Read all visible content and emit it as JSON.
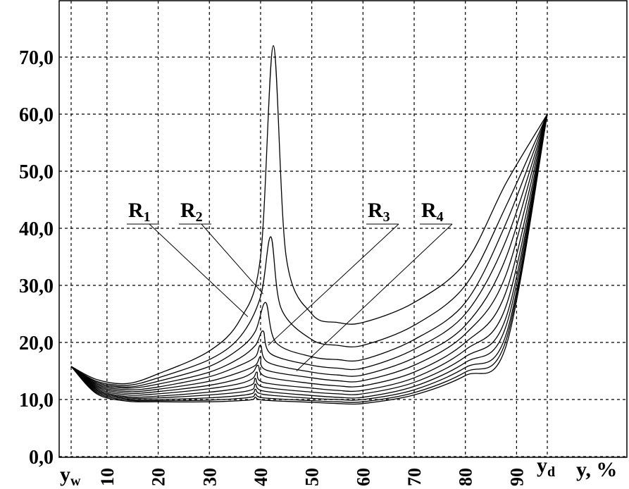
{
  "chart_data": {
    "type": "line",
    "title": "",
    "xlabel": "y, %",
    "ylabel": "",
    "x_min_label": "y",
    "x_min_sub": "w",
    "x_max_label": "y",
    "x_max_sub": "d",
    "xlim": [
      3,
      97
    ],
    "ylim": [
      0,
      75
    ],
    "x_ticks": [
      10,
      20,
      30,
      40,
      50,
      60,
      70,
      80,
      90
    ],
    "x_tick_labels": [
      "10",
      "20",
      "30",
      "40",
      "50",
      "60",
      "70",
      "80",
      "90"
    ],
    "y_ticks": [
      0,
      10,
      20,
      30,
      40,
      50,
      60,
      70
    ],
    "y_tick_labels": [
      "0,0",
      "10,0",
      "20,0",
      "30,0",
      "40,0",
      "50,0",
      "60,0",
      "70,0"
    ],
    "grid": true,
    "curve_labels": [
      {
        "text": "R",
        "sub": "1",
        "points_to": [
          37.5,
          24.5
        ]
      },
      {
        "text": "R",
        "sub": "2",
        "points_to": [
          40.5,
          28.5
        ]
      },
      {
        "text": "R",
        "sub": "3",
        "points_to": [
          41.5,
          19.5
        ]
      },
      {
        "text": "R",
        "sub": "4",
        "points_to": [
          47,
          15
        ]
      }
    ],
    "series": [
      {
        "values": [
          [
            3,
            15.8
          ],
          [
            8,
            13.5
          ],
          [
            14,
            12.8
          ],
          [
            20,
            14.5
          ],
          [
            30,
            18.5
          ],
          [
            36,
            24
          ],
          [
            40,
            35
          ],
          [
            42.5,
            72
          ],
          [
            45,
            35
          ],
          [
            50,
            25
          ],
          [
            55,
            23.5
          ],
          [
            60,
            23.5
          ],
          [
            70,
            27
          ],
          [
            80,
            34
          ],
          [
            88,
            48
          ],
          [
            96,
            60
          ]
        ]
      },
      {
        "values": [
          [
            3,
            15.8
          ],
          [
            8,
            13.2
          ],
          [
            14,
            12.5
          ],
          [
            20,
            13.8
          ],
          [
            30,
            17
          ],
          [
            36,
            21
          ],
          [
            40,
            28
          ],
          [
            42,
            38.5
          ],
          [
            44,
            26
          ],
          [
            50,
            20.5
          ],
          [
            55,
            19.5
          ],
          [
            60,
            19.5
          ],
          [
            70,
            23
          ],
          [
            80,
            30
          ],
          [
            88,
            44
          ],
          [
            96,
            60
          ]
        ]
      },
      {
        "values": [
          [
            3,
            15.8
          ],
          [
            8,
            13
          ],
          [
            14,
            12.2
          ],
          [
            20,
            13.2
          ],
          [
            30,
            15.8
          ],
          [
            36,
            19
          ],
          [
            39,
            22
          ],
          [
            41,
            27
          ],
          [
            43,
            20
          ],
          [
            50,
            17.5
          ],
          [
            55,
            17
          ],
          [
            60,
            17
          ],
          [
            70,
            20.5
          ],
          [
            80,
            27
          ],
          [
            88,
            41
          ],
          [
            96,
            60
          ]
        ]
      },
      {
        "values": [
          [
            3,
            15.8
          ],
          [
            8,
            12.8
          ],
          [
            14,
            12
          ],
          [
            20,
            12.7
          ],
          [
            30,
            14.8
          ],
          [
            36,
            17.3
          ],
          [
            39,
            19.5
          ],
          [
            40.5,
            22
          ],
          [
            42,
            18
          ],
          [
            50,
            16
          ],
          [
            55,
            15.5
          ],
          [
            60,
            15.5
          ],
          [
            70,
            18.8
          ],
          [
            80,
            25
          ],
          [
            88,
            38
          ],
          [
            96,
            60
          ]
        ]
      },
      {
        "values": [
          [
            3,
            15.8
          ],
          [
            8,
            12.6
          ],
          [
            14,
            11.7
          ],
          [
            20,
            12.2
          ],
          [
            30,
            14
          ],
          [
            36,
            16
          ],
          [
            39,
            17.5
          ],
          [
            40,
            19.5
          ],
          [
            41.5,
            16.5
          ],
          [
            50,
            14.8
          ],
          [
            55,
            14.3
          ],
          [
            60,
            14.3
          ],
          [
            70,
            17.3
          ],
          [
            80,
            23
          ],
          [
            88,
            35
          ],
          [
            96,
            60
          ]
        ]
      },
      {
        "values": [
          [
            3,
            15.8
          ],
          [
            8,
            12.4
          ],
          [
            14,
            11.4
          ],
          [
            20,
            11.8
          ],
          [
            30,
            13.2
          ],
          [
            36,
            14.8
          ],
          [
            39,
            16
          ],
          [
            40,
            17.5
          ],
          [
            41,
            15.2
          ],
          [
            50,
            13.8
          ],
          [
            55,
            13.3
          ],
          [
            60,
            13.3
          ],
          [
            70,
            16
          ],
          [
            80,
            21.5
          ],
          [
            88,
            32
          ],
          [
            96,
            60
          ]
        ]
      },
      {
        "values": [
          [
            3,
            15.8
          ],
          [
            8,
            12.2
          ],
          [
            14,
            11.1
          ],
          [
            20,
            11.4
          ],
          [
            30,
            12.5
          ],
          [
            36,
            13.7
          ],
          [
            38.5,
            14.8
          ],
          [
            39.5,
            16
          ],
          [
            41,
            14
          ],
          [
            50,
            12.8
          ],
          [
            55,
            12.4
          ],
          [
            60,
            12.4
          ],
          [
            70,
            14.8
          ],
          [
            80,
            20
          ],
          [
            88,
            29
          ],
          [
            96,
            60
          ]
        ]
      },
      {
        "values": [
          [
            3,
            15.8
          ],
          [
            8,
            12
          ],
          [
            14,
            10.8
          ],
          [
            20,
            11
          ],
          [
            30,
            11.9
          ],
          [
            36,
            12.8
          ],
          [
            38.5,
            13.7
          ],
          [
            39.3,
            14.8
          ],
          [
            40.5,
            13
          ],
          [
            50,
            12
          ],
          [
            55,
            11.6
          ],
          [
            60,
            11.6
          ],
          [
            70,
            13.8
          ],
          [
            80,
            18.7
          ],
          [
            88,
            26.5
          ],
          [
            96,
            60
          ]
        ]
      },
      {
        "values": [
          [
            3,
            15.8
          ],
          [
            8,
            11.8
          ],
          [
            14,
            10.5
          ],
          [
            20,
            10.6
          ],
          [
            30,
            11.3
          ],
          [
            36,
            12
          ],
          [
            38.5,
            12.7
          ],
          [
            39,
            13.7
          ],
          [
            40.5,
            12.2
          ],
          [
            50,
            11.3
          ],
          [
            55,
            11
          ],
          [
            60,
            11
          ],
          [
            70,
            13
          ],
          [
            80,
            17.5
          ],
          [
            88,
            24.5
          ],
          [
            96,
            60
          ]
        ]
      },
      {
        "values": [
          [
            3,
            15.8
          ],
          [
            8,
            11.6
          ],
          [
            14,
            10.3
          ],
          [
            20,
            10.3
          ],
          [
            30,
            10.8
          ],
          [
            36,
            11.3
          ],
          [
            38.5,
            11.8
          ],
          [
            39,
            12.7
          ],
          [
            40.5,
            11.5
          ],
          [
            50,
            10.7
          ],
          [
            55,
            10.4
          ],
          [
            60,
            10.4
          ],
          [
            70,
            12.3
          ],
          [
            80,
            16.5
          ],
          [
            88,
            23
          ],
          [
            96,
            60
          ]
        ]
      },
      {
        "values": [
          [
            3,
            15.8
          ],
          [
            8,
            11.4
          ],
          [
            14,
            10.1
          ],
          [
            20,
            10
          ],
          [
            30,
            10.3
          ],
          [
            36,
            10.7
          ],
          [
            38.5,
            11.1
          ],
          [
            39,
            11.8
          ],
          [
            40.5,
            10.9
          ],
          [
            50,
            10.2
          ],
          [
            55,
            10
          ],
          [
            60,
            10
          ],
          [
            70,
            11.7
          ],
          [
            80,
            15.6
          ],
          [
            88,
            21.5
          ],
          [
            96,
            60
          ]
        ]
      },
      {
        "values": [
          [
            3,
            15.8
          ],
          [
            8,
            11.2
          ],
          [
            14,
            9.9
          ],
          [
            20,
            9.8
          ],
          [
            30,
            9.9
          ],
          [
            36,
            10.2
          ],
          [
            38.5,
            10.5
          ],
          [
            39,
            11
          ],
          [
            40.5,
            10.3
          ],
          [
            50,
            9.8
          ],
          [
            55,
            9.6
          ],
          [
            60,
            9.6
          ],
          [
            70,
            11.2
          ],
          [
            80,
            14.8
          ],
          [
            88,
            20.5
          ],
          [
            96,
            60
          ]
        ]
      },
      {
        "values": [
          [
            3,
            15.8
          ],
          [
            8,
            11
          ],
          [
            14,
            9.7
          ],
          [
            20,
            9.6
          ],
          [
            30,
            9.6
          ],
          [
            36,
            9.8
          ],
          [
            38.5,
            10
          ],
          [
            39,
            10.4
          ],
          [
            40.5,
            9.9
          ],
          [
            50,
            9.5
          ],
          [
            55,
            9.3
          ],
          [
            60,
            9.3
          ],
          [
            70,
            10.8
          ],
          [
            80,
            14.2
          ],
          [
            88,
            19.5
          ],
          [
            96,
            60
          ]
        ]
      }
    ]
  }
}
